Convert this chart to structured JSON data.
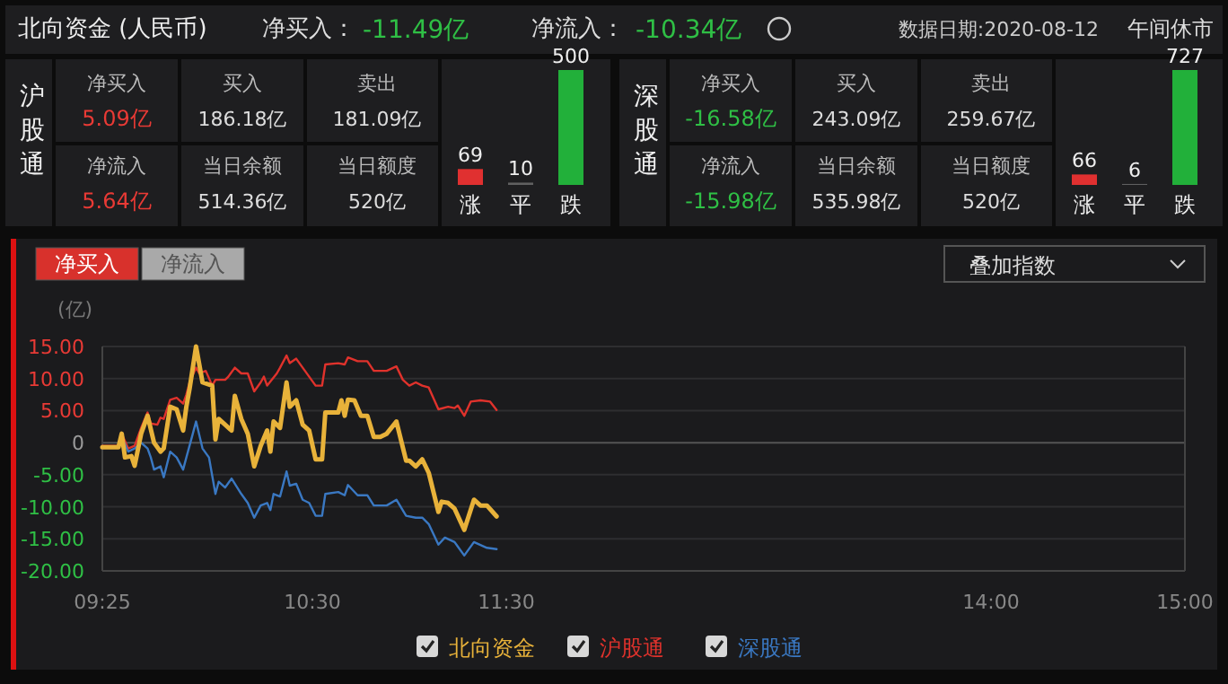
{
  "chart_data": [
    {
      "type": "other",
      "title": "北向资金 (人民币)",
      "annotations": [
        "净买入：",
        "-11.49亿",
        "净流入：",
        "-10.34亿",
        "数据日期:2020-08-12",
        "午间休市",
        "沪股通",
        "净买入",
        "5.09亿",
        "买入",
        "186.18亿",
        "卖出",
        "181.09亿",
        "净流入",
        "5.64亿",
        "当日余额",
        "514.36亿",
        "当日额度",
        "520亿",
        "深股通",
        "净买入",
        "-16.58亿",
        "买入",
        "243.09亿",
        "卖出",
        "259.67亿",
        "净流入",
        "-15.98亿",
        "当日余额",
        "535.98亿",
        "当日额度",
        "520亿"
      ]
    },
    {
      "type": "bar",
      "categories": [
        "涨",
        "平",
        "跌"
      ],
      "values": [
        69,
        10,
        500
      ],
      "colors": [
        "#e03030",
        "#606060",
        "#22b03a"
      ],
      "data_labels": true
    },
    {
      "type": "bar",
      "categories": [
        "涨",
        "平",
        "跌"
      ],
      "values": [
        66,
        6,
        727
      ],
      "colors": [
        "#e03030",
        "#606060",
        "#22b03a"
      ],
      "data_labels": true
    },
    {
      "type": "line",
      "ylabel": "(亿)",
      "annotations": [
        "净买入",
        "净流入",
        "叠加指数"
      ],
      "xlim": [
        "2020-08-12T09:25",
        "2020-08-12T15:00"
      ],
      "xticks": [
        {
          "value": "2020-08-12T09:25",
          "label": "09:25"
        },
        {
          "value": "2020-08-12T10:30",
          "label": "10:30"
        },
        {
          "value": "2020-08-12T11:30",
          "label": "11:30"
        },
        {
          "value": "2020-08-12T14:00",
          "label": "14:00"
        },
        {
          "value": "2020-08-12T15:00",
          "label": "15:00"
        }
      ],
      "ylim": [
        -20,
        15
      ],
      "yticks": [
        {
          "value": 15,
          "label": "15.00"
        },
        {
          "value": 10,
          "label": "10.00"
        },
        {
          "value": 5,
          "label": "5.00"
        },
        0,
        {
          "value": -5,
          "label": "-5.00"
        },
        {
          "value": -10,
          "label": "-10.00"
        },
        {
          "value": -15,
          "label": "-15.00"
        },
        {
          "value": -20,
          "label": "-20.00"
        }
      ],
      "grid": "y",
      "legend": "bottom",
      "series": [
        {
          "name": "北向资金",
          "color": "#e8b23a",
          "x": [
            "2020-08-12T09:25",
            "2020-08-12T09:30",
            "2020-08-12T09:31",
            "2020-08-12T09:32",
            "2020-08-12T09:34",
            "2020-08-12T09:35",
            "2020-08-12T09:37",
            "2020-08-12T09:39",
            "2020-08-12T09:41",
            "2020-08-12T09:43",
            "2020-08-12T09:44",
            "2020-08-12T09:46",
            "2020-08-12T09:48",
            "2020-08-12T09:50",
            "2020-08-12T09:51",
            "2020-08-12T09:52",
            "2020-08-12T09:54",
            "2020-08-12T09:56",
            "2020-08-12T09:59",
            "2020-08-12T10:00",
            "2020-08-12T10:01",
            "2020-08-12T10:03",
            "2020-08-12T10:05",
            "2020-08-12T10:06",
            "2020-08-12T10:08",
            "2020-08-12T10:10",
            "2020-08-12T10:12",
            "2020-08-12T10:14",
            "2020-08-12T10:16",
            "2020-08-12T10:17",
            "2020-08-12T10:18",
            "2020-08-12T10:20",
            "2020-08-12T10:22",
            "2020-08-12T10:23",
            "2020-08-12T10:25",
            "2020-08-12T10:27",
            "2020-08-12T10:29",
            "2020-08-12T10:31",
            "2020-08-12T10:33",
            "2020-08-12T10:34",
            "2020-08-12T10:38",
            "2020-08-12T10:39",
            "2020-08-12T10:40",
            "2020-08-12T10:41",
            "2020-08-12T10:43",
            "2020-08-12T10:45",
            "2020-08-12T10:47",
            "2020-08-12T10:49",
            "2020-08-12T10:51",
            "2020-08-12T10:53",
            "2020-08-12T10:56",
            "2020-08-12T10:59",
            "2020-08-12T11:00",
            "2020-08-12T11:02",
            "2020-08-12T11:04",
            "2020-08-12T11:06",
            "2020-08-12T11:09",
            "2020-08-12T11:10",
            "2020-08-12T11:12",
            "2020-08-12T11:14",
            "2020-08-12T11:17",
            "2020-08-12T11:20",
            "2020-08-12T11:22",
            "2020-08-12T11:24",
            "2020-08-12T11:27"
          ],
          "values": [
            -0.7,
            -0.7,
            1.4,
            -2.3,
            -2.1,
            -3.6,
            1.4,
            4.2,
            0,
            -1.4,
            -0.9,
            5.6,
            5.2,
            1.9,
            5.6,
            8.4,
            15.0,
            9.4,
            8.9,
            0.5,
            3.7,
            2.8,
            1.9,
            7.3,
            3.7,
            1.4,
            -3.7,
            -0.5,
            1.9,
            -1.4,
            3.3,
            2.3,
            9.4,
            5.6,
            6.6,
            2.8,
            1.9,
            -2.6,
            -2.6,
            4.7,
            4.7,
            6.6,
            4.2,
            6.7,
            6.6,
            4.2,
            4.2,
            0.9,
            0.9,
            1.4,
            3.3,
            -2.8,
            -2.8,
            -3.7,
            -2.6,
            -4.7,
            -10.8,
            -9.2,
            -9.4,
            -10.3,
            -13.6,
            -8.9,
            -9.8,
            -9.8,
            -11.5
          ]
        },
        {
          "name": "沪股通",
          "color": "#e0322c",
          "x": [
            "2020-08-12T09:25",
            "2020-08-12T09:30",
            "2020-08-12T09:31",
            "2020-08-12T09:33",
            "2020-08-12T09:35",
            "2020-08-12T09:37",
            "2020-08-12T09:39",
            "2020-08-12T09:40",
            "2020-08-12T09:42",
            "2020-08-12T09:43",
            "2020-08-12T09:44",
            "2020-08-12T09:46",
            "2020-08-12T09:48",
            "2020-08-12T09:50",
            "2020-08-12T09:51",
            "2020-08-12T09:52",
            "2020-08-12T09:54",
            "2020-08-12T09:55",
            "2020-08-12T09:57",
            "2020-08-12T09:59",
            "2020-08-12T10:00",
            "2020-08-12T10:03",
            "2020-08-12T10:04",
            "2020-08-12T10:06",
            "2020-08-12T10:08",
            "2020-08-12T10:10",
            "2020-08-12T10:12",
            "2020-08-12T10:14",
            "2020-08-12T10:15",
            "2020-08-12T10:16",
            "2020-08-12T10:19",
            "2020-08-12T10:20",
            "2020-08-12T10:22",
            "2020-08-12T10:23",
            "2020-08-12T10:25",
            "2020-08-12T10:27",
            "2020-08-12T10:31",
            "2020-08-12T10:33",
            "2020-08-12T10:34",
            "2020-08-12T10:38",
            "2020-08-12T10:40",
            "2020-08-12T10:41",
            "2020-08-12T10:44",
            "2020-08-12T10:47",
            "2020-08-12T10:49",
            "2020-08-12T10:53",
            "2020-08-12T10:56",
            "2020-08-12T10:58",
            "2020-08-12T11:00",
            "2020-08-12T11:02",
            "2020-08-12T11:04",
            "2020-08-12T11:06",
            "2020-08-12T11:09",
            "2020-08-12T11:12",
            "2020-08-12T11:14",
            "2020-08-12T11:15",
            "2020-08-12T11:17",
            "2020-08-12T11:19",
            "2020-08-12T11:22",
            "2020-08-12T11:25",
            "2020-08-12T11:27"
          ],
          "values": [
            -0.5,
            -0.5,
            1.4,
            -0.9,
            -0.5,
            2.3,
            4.7,
            3.0,
            2.8,
            3.9,
            3.7,
            6.7,
            7.0,
            6.1,
            7.5,
            9.4,
            11.7,
            10.8,
            11.2,
            8.9,
            9.8,
            9.8,
            10.3,
            11.7,
            10.8,
            10.8,
            8.0,
            9.4,
            10.3,
            8.9,
            10.8,
            11.7,
            13.6,
            12.4,
            13.1,
            11.7,
            8.9,
            8.9,
            12.2,
            12.4,
            12.2,
            13.3,
            12.7,
            12.7,
            11.2,
            11.2,
            11.9,
            9.8,
            8.9,
            9.4,
            8.9,
            8.6,
            5.2,
            5.6,
            5.4,
            5.8,
            4.2,
            6.4,
            6.6,
            6.4,
            5.1
          ]
        },
        {
          "name": "深股通",
          "color": "#3a78c2",
          "x": [
            "2020-08-12T09:25",
            "2020-08-12T09:30",
            "2020-08-12T09:31",
            "2020-08-12T09:33",
            "2020-08-12T09:35",
            "2020-08-12T09:37",
            "2020-08-12T09:39",
            "2020-08-12T09:40",
            "2020-08-12T09:41",
            "2020-08-12T09:43",
            "2020-08-12T09:44",
            "2020-08-12T09:46",
            "2020-08-12T09:48",
            "2020-08-12T09:50",
            "2020-08-12T09:51",
            "2020-08-12T09:53",
            "2020-08-12T09:54",
            "2020-08-12T09:56",
            "2020-08-12T09:58",
            "2020-08-12T10:00",
            "2020-08-12T10:01",
            "2020-08-12T10:03",
            "2020-08-12T10:05",
            "2020-08-12T10:08",
            "2020-08-12T10:10",
            "2020-08-12T10:12",
            "2020-08-12T10:14",
            "2020-08-12T10:16",
            "2020-08-12T10:17",
            "2020-08-12T10:18",
            "2020-08-12T10:20",
            "2020-08-12T10:22",
            "2020-08-12T10:23",
            "2020-08-12T10:25",
            "2020-08-12T10:27",
            "2020-08-12T10:29",
            "2020-08-12T10:31",
            "2020-08-12T10:33",
            "2020-08-12T10:34",
            "2020-08-12T10:38",
            "2020-08-12T10:40",
            "2020-08-12T10:41",
            "2020-08-12T10:44",
            "2020-08-12T10:47",
            "2020-08-12T10:49",
            "2020-08-12T10:53",
            "2020-08-12T10:56",
            "2020-08-12T10:59",
            "2020-08-12T11:02",
            "2020-08-12T11:04",
            "2020-08-12T11:06",
            "2020-08-12T11:09",
            "2020-08-12T11:11",
            "2020-08-12T11:14",
            "2020-08-12T11:17",
            "2020-08-12T11:20",
            "2020-08-12T11:24",
            "2020-08-12T11:27"
          ],
          "values": [
            -0.7,
            -0.7,
            0.9,
            -1.4,
            -0.9,
            0,
            -0.9,
            -2.3,
            -4.2,
            -3.7,
            -5.4,
            -1.4,
            -2.3,
            -4.2,
            -2.3,
            1.4,
            3.3,
            -0.9,
            -2.3,
            -8.0,
            -6.1,
            -7.0,
            -5.6,
            -8.0,
            -9.4,
            -11.7,
            -9.8,
            -9.4,
            -10.5,
            -8.0,
            -8.4,
            -4.5,
            -6.7,
            -6.4,
            -8.9,
            -9.4,
            -11.4,
            -11.4,
            -8.0,
            -7.7,
            -8.2,
            -6.6,
            -8.2,
            -8.2,
            -9.8,
            -9.8,
            -8.9,
            -11.4,
            -11.7,
            -11.7,
            -12.7,
            -15.9,
            -14.8,
            -15.5,
            -17.6,
            -15.5,
            -16.4,
            -16.6
          ]
        }
      ]
    }
  ]
}
